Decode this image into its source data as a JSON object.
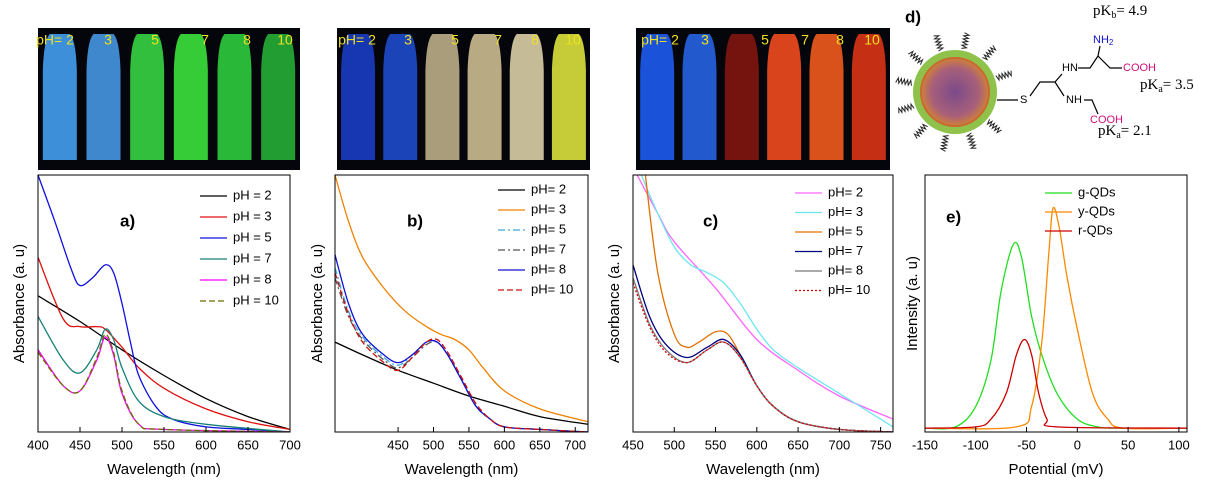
{
  "chart_data": [
    {
      "type": "line",
      "panel_label": "a)",
      "xlabel": "Wavelength (nm)",
      "ylabel": "Absorbance (a. u)",
      "xlim": [
        400,
        700
      ],
      "xticks": [
        400,
        450,
        500,
        550,
        600,
        650,
        700
      ],
      "ylim": [
        0,
        1
      ],
      "legend": "upper right",
      "series": [
        {
          "name": "pH = 2",
          "color": "#000000",
          "dash": "solid",
          "x": [
            400,
            450,
            500,
            550,
            600,
            650,
            700
          ],
          "values": [
            0.53,
            0.43,
            0.32,
            0.22,
            0.13,
            0.06,
            0.01
          ]
        },
        {
          "name": "pH = 3",
          "color": "#e01010",
          "dash": "solid",
          "x": [
            400,
            430,
            450,
            470,
            480,
            500,
            520,
            550,
            600,
            650,
            700
          ],
          "values": [
            0.68,
            0.44,
            0.41,
            0.41,
            0.4,
            0.33,
            0.25,
            0.17,
            0.09,
            0.04,
            0.01
          ]
        },
        {
          "name": "pH = 5",
          "color": "#1010e0",
          "dash": "solid",
          "x": [
            400,
            420,
            440,
            450,
            465,
            480,
            490,
            500,
            510,
            520,
            540,
            560,
            600,
            650,
            700
          ],
          "values": [
            1.0,
            0.82,
            0.63,
            0.57,
            0.6,
            0.65,
            0.62,
            0.5,
            0.35,
            0.22,
            0.1,
            0.05,
            0.02,
            0.01,
            0
          ]
        },
        {
          "name": "pH = 7",
          "color": "#168078",
          "dash": "solid",
          "x": [
            400,
            430,
            450,
            470,
            480,
            490,
            500,
            520,
            550,
            600,
            700
          ],
          "values": [
            0.45,
            0.28,
            0.23,
            0.32,
            0.4,
            0.36,
            0.25,
            0.12,
            0.06,
            0.03,
            0
          ]
        },
        {
          "name": "pH = 8",
          "color": "#ff00ff",
          "dash": "solid",
          "x": [
            400,
            430,
            450,
            470,
            480,
            490,
            500,
            520,
            550,
            700
          ],
          "values": [
            0.32,
            0.18,
            0.16,
            0.28,
            0.37,
            0.3,
            0.15,
            0.03,
            0.01,
            0
          ]
        },
        {
          "name": "pH = 10",
          "color": "#6b6b00",
          "dash": "dashed",
          "x": [
            400,
            430,
            450,
            470,
            480,
            490,
            500,
            520,
            550,
            700
          ],
          "values": [
            0.31,
            0.18,
            0.16,
            0.29,
            0.38,
            0.31,
            0.16,
            0.03,
            0.01,
            0
          ]
        }
      ]
    },
    {
      "type": "line",
      "panel_label": "b)",
      "xlabel": "Wavelength (nm)",
      "ylabel": "Absorbance (a. u)",
      "xlim": [
        361,
        718
      ],
      "xticks": [
        450,
        500,
        550,
        600,
        650,
        700
      ],
      "ylim": [
        0,
        1
      ],
      "legend": "upper right",
      "series": [
        {
          "name": "pH= 2",
          "color": "#000000",
          "dash": "solid",
          "x": [
            361,
            400,
            450,
            500,
            550,
            600,
            650,
            718
          ],
          "values": [
            0.35,
            0.3,
            0.24,
            0.19,
            0.14,
            0.1,
            0.06,
            0.03
          ]
        },
        {
          "name": "pH= 3",
          "color": "#f08000",
          "dash": "solid",
          "x": [
            361,
            380,
            400,
            430,
            460,
            490,
            510,
            530,
            550,
            570,
            600,
            650,
            718
          ],
          "values": [
            1.0,
            0.82,
            0.68,
            0.56,
            0.47,
            0.41,
            0.38,
            0.36,
            0.32,
            0.25,
            0.16,
            0.09,
            0.04
          ]
        },
        {
          "name": "pH= 5",
          "color": "#3aa8e0",
          "dash": "dashdot",
          "x": [
            361,
            380,
            400,
            430,
            450,
            470,
            490,
            505,
            520,
            540,
            560,
            580,
            600,
            650,
            718
          ],
          "values": [
            0.64,
            0.47,
            0.37,
            0.29,
            0.26,
            0.3,
            0.35,
            0.35,
            0.3,
            0.2,
            0.1,
            0.05,
            0.02,
            0.01,
            0
          ]
        },
        {
          "name": "pH= 7",
          "color": "#555555",
          "dash": "dashdot",
          "x": [
            361,
            380,
            400,
            430,
            450,
            470,
            490,
            505,
            520,
            540,
            560,
            580,
            600,
            650,
            718
          ],
          "values": [
            0.6,
            0.45,
            0.36,
            0.28,
            0.25,
            0.29,
            0.34,
            0.35,
            0.3,
            0.2,
            0.1,
            0.05,
            0.02,
            0.01,
            0
          ]
        },
        {
          "name": "pH= 8",
          "color": "#1010d0",
          "dash": "solid",
          "x": [
            361,
            380,
            400,
            430,
            450,
            470,
            490,
            505,
            520,
            540,
            560,
            580,
            600,
            650,
            718
          ],
          "values": [
            0.69,
            0.5,
            0.38,
            0.3,
            0.27,
            0.3,
            0.35,
            0.35,
            0.3,
            0.2,
            0.1,
            0.05,
            0.02,
            0.01,
            0
          ]
        },
        {
          "name": "pH= 10",
          "color": "#cc1010",
          "dash": "dashed",
          "x": [
            361,
            380,
            400,
            430,
            450,
            470,
            490,
            505,
            520,
            540,
            560,
            580,
            600,
            650,
            718
          ],
          "values": [
            0.62,
            0.46,
            0.35,
            0.27,
            0.24,
            0.29,
            0.35,
            0.36,
            0.31,
            0.21,
            0.11,
            0.05,
            0.02,
            0.01,
            0
          ]
        }
      ]
    },
    {
      "type": "line",
      "panel_label": "c)",
      "xlabel": "Wavelength (nm)",
      "ylabel": "Absorbance (a. u)",
      "xlim": [
        450,
        765
      ],
      "xticks": [
        450,
        500,
        550,
        600,
        650,
        700,
        750
      ],
      "ylim": [
        0,
        1
      ],
      "legend": "upper right",
      "series": [
        {
          "name": "pH= 2",
          "color": "#ff66ff",
          "dash": "solid",
          "x": [
            455,
            480,
            500,
            550,
            600,
            650,
            700,
            765
          ],
          "values": [
            1.0,
            0.85,
            0.74,
            0.56,
            0.36,
            0.24,
            0.14,
            0.05
          ]
        },
        {
          "name": "pH= 3",
          "color": "#6ee6f0",
          "dash": "solid",
          "x": [
            460,
            480,
            500,
            520,
            540,
            560,
            580,
            600,
            620,
            650,
            700,
            765
          ],
          "values": [
            1.0,
            0.85,
            0.72,
            0.65,
            0.62,
            0.58,
            0.5,
            0.4,
            0.32,
            0.25,
            0.15,
            0.02
          ]
        },
        {
          "name": "pH= 5",
          "color": "#e07000",
          "dash": "solid",
          "x": [
            465,
            480,
            500,
            515,
            530,
            550,
            565,
            580,
            600,
            620,
            650,
            700,
            765
          ],
          "values": [
            1.0,
            0.62,
            0.38,
            0.33,
            0.35,
            0.39,
            0.38,
            0.3,
            0.18,
            0.1,
            0.04,
            0.01,
            0
          ]
        },
        {
          "name": "pH= 7",
          "color": "#000080",
          "dash": "solid",
          "x": [
            450,
            470,
            490,
            515,
            540,
            560,
            580,
            600,
            620,
            650,
            700,
            765
          ],
          "values": [
            0.65,
            0.45,
            0.34,
            0.29,
            0.33,
            0.36,
            0.3,
            0.18,
            0.1,
            0.04,
            0.01,
            0
          ]
        },
        {
          "name": "pH= 8",
          "color": "#777777",
          "dash": "solid",
          "x": [
            450,
            470,
            490,
            515,
            540,
            560,
            580,
            600,
            620,
            650,
            700,
            765
          ],
          "values": [
            0.6,
            0.42,
            0.32,
            0.27,
            0.32,
            0.35,
            0.29,
            0.18,
            0.1,
            0.04,
            0.01,
            0
          ]
        },
        {
          "name": "pH= 10",
          "color": "#e00000",
          "dash": "dotted",
          "x": [
            450,
            470,
            490,
            515,
            540,
            560,
            580,
            600,
            620,
            650,
            700,
            765
          ],
          "values": [
            0.58,
            0.41,
            0.31,
            0.27,
            0.32,
            0.35,
            0.29,
            0.18,
            0.1,
            0.04,
            0.01,
            0
          ]
        }
      ]
    },
    {
      "type": "line",
      "panel_label": "e)",
      "xlabel": "Potential (mV)",
      "ylabel": "Intensity (a. u)",
      "xlim": [
        -150,
        108
      ],
      "xticks": [
        -150,
        -100,
        -50,
        0,
        50,
        100
      ],
      "ylim": [
        0,
        1
      ],
      "legend": "upper right",
      "series": [
        {
          "name": "g-QDs",
          "color": "#22dd22",
          "dash": "solid",
          "x": [
            -150,
            -120,
            -100,
            -85,
            -75,
            -63,
            -55,
            -45,
            -35,
            -20,
            0,
            20,
            40,
            108
          ],
          "values": [
            0.015,
            0.02,
            0.1,
            0.28,
            0.55,
            0.73,
            0.68,
            0.45,
            0.3,
            0.15,
            0.05,
            0.02,
            0.015,
            0.015
          ]
        },
        {
          "name": "y-QDs",
          "color": "#ff8800",
          "dash": "solid",
          "x": [
            -150,
            -60,
            -45,
            -35,
            -28,
            -24,
            -18,
            -10,
            0,
            15,
            30,
            45,
            108
          ],
          "values": [
            0.015,
            0.02,
            0.1,
            0.35,
            0.7,
            0.87,
            0.8,
            0.6,
            0.4,
            0.15,
            0.05,
            0.015,
            0.015
          ]
        },
        {
          "name": "r-QDs",
          "color": "#cc0000",
          "dash": "solid",
          "x": [
            -150,
            -100,
            -85,
            -70,
            -60,
            -52,
            -45,
            -38,
            -30,
            -20,
            108
          ],
          "values": [
            0.015,
            0.02,
            0.05,
            0.15,
            0.3,
            0.36,
            0.3,
            0.15,
            0.05,
            0.02,
            0.015
          ]
        }
      ]
    }
  ],
  "photos": [
    {
      "labels": [
        "pH= 2",
        "3",
        "5",
        "7",
        "8",
        "10"
      ]
    },
    {
      "labels": [
        "pH= 2",
        "3",
        "5",
        "7",
        "8",
        "10"
      ]
    },
    {
      "labels": [
        "pH= 2",
        "3",
        "5",
        "7",
        "8",
        "10"
      ]
    }
  ],
  "schematic": {
    "panel_label": "d)",
    "pkb": {
      "base": "pK",
      "sub": "b",
      "rest": "= 4.9"
    },
    "nh2": {
      "base": "NH",
      "sub": "2"
    },
    "cooh_top": "COOH",
    "hn": "HN",
    "s": "S",
    "nh": "NH",
    "cooh_bottom": "COOH",
    "pka1": {
      "base": "pK",
      "sub": "a",
      "rest": "= 3.5"
    },
    "pka2": {
      "base": "pK",
      "sub": "a",
      "rest": "= 2.1"
    }
  }
}
